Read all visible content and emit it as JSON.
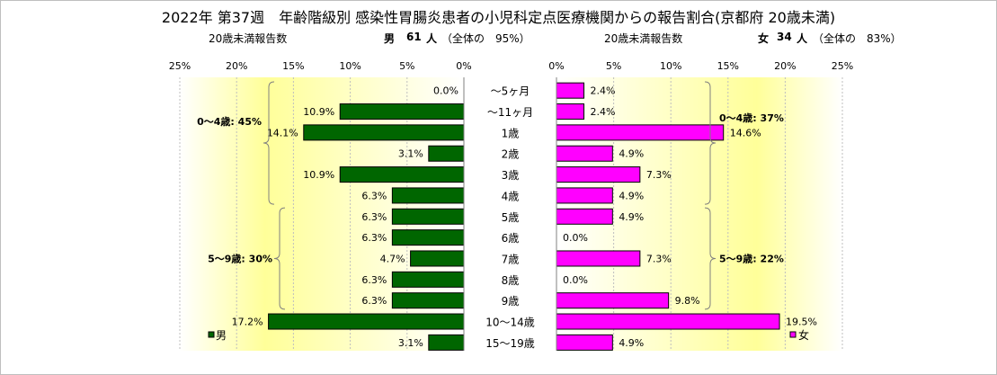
{
  "chart_data": {
    "type": "bar",
    "title": "2022年 第37週　年齢階級別 感染性胃腸炎患者の小児科定点医療機関からの報告割合(京都府 20歳未満)",
    "categories": [
      "～5ヶ月",
      "～11ヶ月",
      "1歳",
      "2歳",
      "3歳",
      "4歳",
      "5歳",
      "6歳",
      "7歳",
      "8歳",
      "9歳",
      "10～14歳",
      "15～19歳"
    ],
    "xlim": [
      0,
      25
    ],
    "xticks": [
      "0%",
      "5%",
      "10%",
      "15%",
      "20%",
      "25%"
    ],
    "series": [
      {
        "name": "男",
        "color": "#006600",
        "values": [
          0.0,
          10.9,
          14.1,
          3.1,
          10.9,
          6.3,
          6.3,
          6.3,
          4.7,
          6.3,
          6.3,
          17.2,
          3.1
        ],
        "labels": [
          "0.0%",
          "10.9%",
          "14.1%",
          "3.1%",
          "10.9%",
          "6.3%",
          "6.3%",
          "6.3%",
          "4.7%",
          "6.3%",
          "6.3%",
          "17.2%",
          "3.1%"
        ],
        "header": {
          "count_label": "20歳未満報告数",
          "sex": "男",
          "count": "61",
          "unit": "人",
          "share": "（全体の　95%）"
        },
        "groups": [
          {
            "label": "0～4歳: 45%",
            "from": 0,
            "to": 5
          },
          {
            "label": "5～9歳: 30%",
            "from": 6,
            "to": 10
          }
        ]
      },
      {
        "name": "女",
        "color": "#ff00ff",
        "values": [
          2.4,
          2.4,
          14.6,
          4.9,
          7.3,
          4.9,
          4.9,
          0.0,
          7.3,
          0.0,
          9.8,
          19.5,
          4.9
        ],
        "labels": [
          "2.4%",
          "2.4%",
          "14.6%",
          "4.9%",
          "7.3%",
          "4.9%",
          "4.9%",
          "0.0%",
          "7.3%",
          "0.0%",
          "9.8%",
          "19.5%",
          "4.9%"
        ],
        "header": {
          "count_label": "20歳未満報告数",
          "sex": "女",
          "count": "34",
          "unit": "人",
          "share": "（全体の　83%）"
        },
        "groups": [
          {
            "label": "0～4歳: 37%",
            "from": 0,
            "to": 5
          },
          {
            "label": "5～9歳: 22%",
            "from": 6,
            "to": 10
          }
        ]
      }
    ],
    "legend": [
      "男",
      "女"
    ],
    "background": "yellow-gradient"
  }
}
